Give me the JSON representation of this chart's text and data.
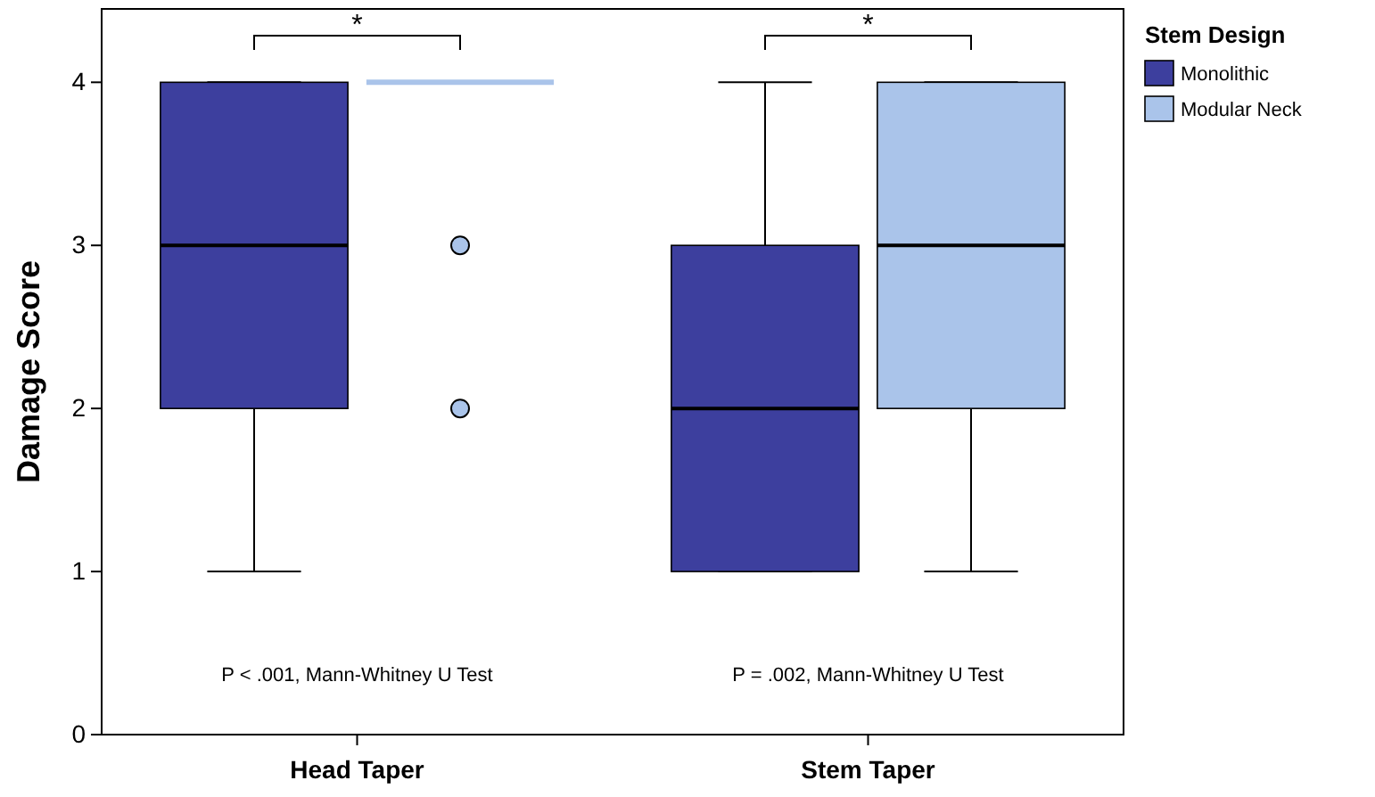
{
  "chart_data": {
    "type": "box",
    "ylabel": "Damage Score",
    "legend_title": "Stem Design",
    "legend": "top right",
    "grid": false,
    "categories": [
      "Head Taper",
      "Stem Taper"
    ],
    "ylim": [
      0,
      4.45
    ],
    "yticks": [
      0,
      1,
      2,
      3,
      4
    ],
    "series": [
      {
        "name": "Monolithic",
        "color": "#3d3f9e",
        "boxes": [
          {
            "low": 1,
            "q1": 2,
            "median": 3,
            "q3": 4,
            "high": 4
          },
          {
            "low": 1,
            "q1": 1,
            "median": 2,
            "q3": 3,
            "high": 4
          }
        ]
      },
      {
        "name": "Modular Neck",
        "color": "#aac4ea",
        "boxes": [
          {
            "low": 4,
            "q1": 4,
            "median": 4,
            "q3": 4,
            "high": 4,
            "outliers": [
              3,
              2
            ]
          },
          {
            "low": 1,
            "q1": 2,
            "median": 3,
            "q3": 4,
            "high": 4
          }
        ]
      }
    ],
    "annotations": [
      "*",
      "*",
      "P < .001, Mann-Whitney U Test",
      "P = .002, Mann-Whitney U Test"
    ]
  }
}
